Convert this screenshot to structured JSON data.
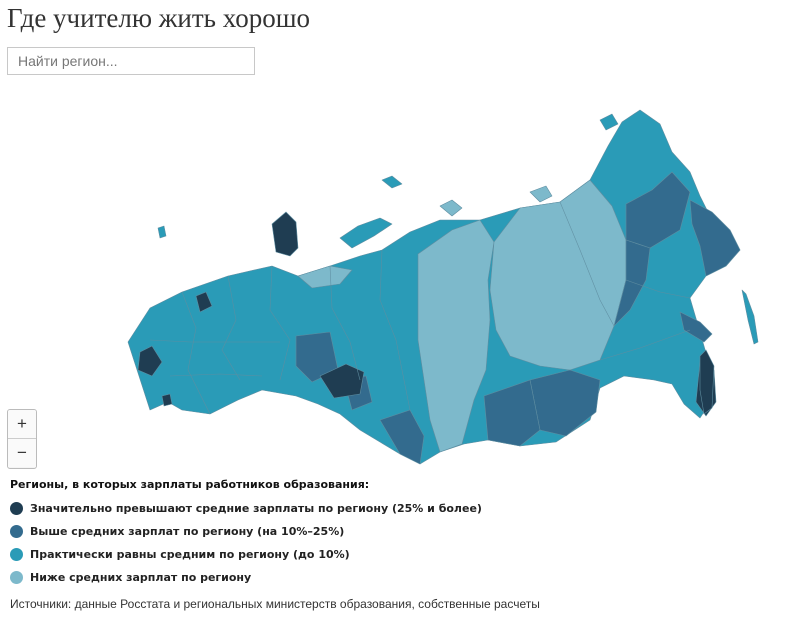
{
  "title": "Где учителю жить хорошо",
  "search": {
    "placeholder": "Найти регион..."
  },
  "zoom": {
    "in_label": "+",
    "out_label": "−"
  },
  "legend": {
    "title": "Регионы, в которых зарплаты работников образования:",
    "items": [
      {
        "label": "Значительно превышают средние зарплаты по региону (25% и более)",
        "color": "#1f3d52"
      },
      {
        "label": "Выше средних зарплат по региону (на 10%–25%)",
        "color": "#336b8e"
      },
      {
        "label": "Практически равны средним по региону (до 10%)",
        "color": "#2a9bb7"
      },
      {
        "label": "Ниже средних зарплат по региону",
        "color": "#7db9cb"
      }
    ]
  },
  "source": "Источники: данные Росстата и региональных министерств образования, собственные расчеты"
}
